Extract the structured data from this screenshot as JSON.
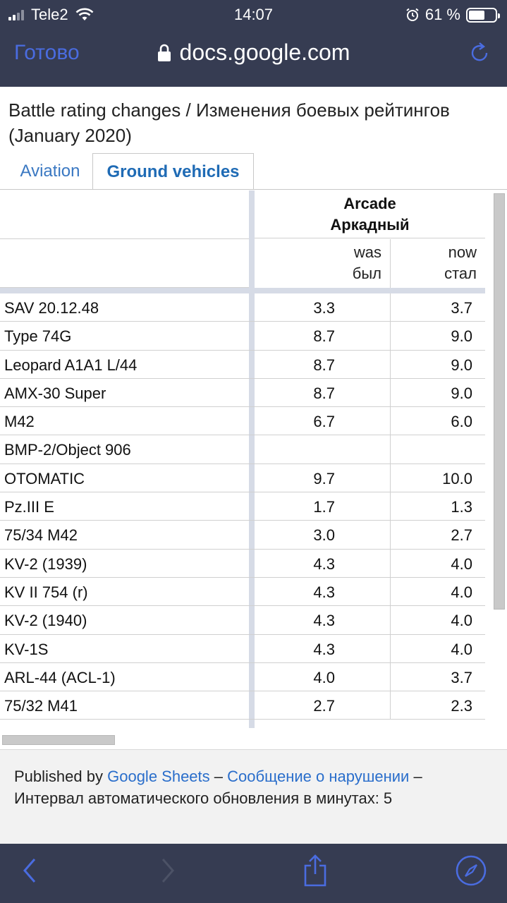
{
  "status_bar": {
    "carrier": "Tele2",
    "time": "14:07",
    "battery": "61 %",
    "battery_level": 0.61,
    "icons": [
      "signal-icon",
      "wifi-icon",
      "alarm-icon",
      "battery-icon"
    ]
  },
  "browser": {
    "done_label": "Готово",
    "url": "docs.google.com",
    "icons": [
      "lock-icon",
      "reload-icon"
    ],
    "accent_color": "#4a6ce0"
  },
  "document": {
    "title": "Battle rating changes / Изменения боевых рейтингов (January 2020)"
  },
  "tabs": [
    {
      "label": "Aviation",
      "active": false
    },
    {
      "label": "Ground vehicles",
      "active": true
    }
  ],
  "sheet": {
    "group_header": "Arcade\nАркадный",
    "col_was": "was\nбыл",
    "col_now": "now\nстал",
    "rows": [
      {
        "name": "SAV 20.12.48",
        "was": "3.3",
        "now": "3.7"
      },
      {
        "name": "Type 74G",
        "was": "8.7",
        "now": "9.0"
      },
      {
        "name": "Leopard A1A1 L/44",
        "was": "8.7",
        "now": "9.0"
      },
      {
        "name": "AMX-30 Super",
        "was": "8.7",
        "now": "9.0"
      },
      {
        "name": "M42",
        "was": "6.7",
        "now": "6.0"
      },
      {
        "name": "BMP-2/Object 906",
        "was": "",
        "now": ""
      },
      {
        "name": "OTOMATIC",
        "was": "9.7",
        "now": "10.0"
      },
      {
        "name": "Pz.III E",
        "was": "1.7",
        "now": "1.3"
      },
      {
        "name": "75/34 M42",
        "was": "3.0",
        "now": "2.7"
      },
      {
        "name": "KV-2 (1939)",
        "was": "4.3",
        "now": "4.0"
      },
      {
        "name": "KV II 754 (r)",
        "was": "4.3",
        "now": "4.0"
      },
      {
        "name": "KV-2 (1940)",
        "was": "4.3",
        "now": "4.0"
      },
      {
        "name": "KV-1S",
        "was": "4.3",
        "now": "4.0"
      },
      {
        "name": "ARL-44 (ACL-1)",
        "was": "4.0",
        "now": "3.7"
      },
      {
        "name": "75/32 M41",
        "was": "2.7",
        "now": "2.3"
      }
    ]
  },
  "footer": {
    "published_by": "Published by",
    "google_sheets": "Google Sheets",
    "dash1": "–",
    "report_link": "Сообщение о нарушении",
    "dash2": "–",
    "interval_text": "Интервал автоматического обновления в минутах: 5"
  },
  "toolbar": {
    "icons": [
      "back-icon",
      "forward-icon",
      "share-icon",
      "safari-icon"
    ]
  }
}
